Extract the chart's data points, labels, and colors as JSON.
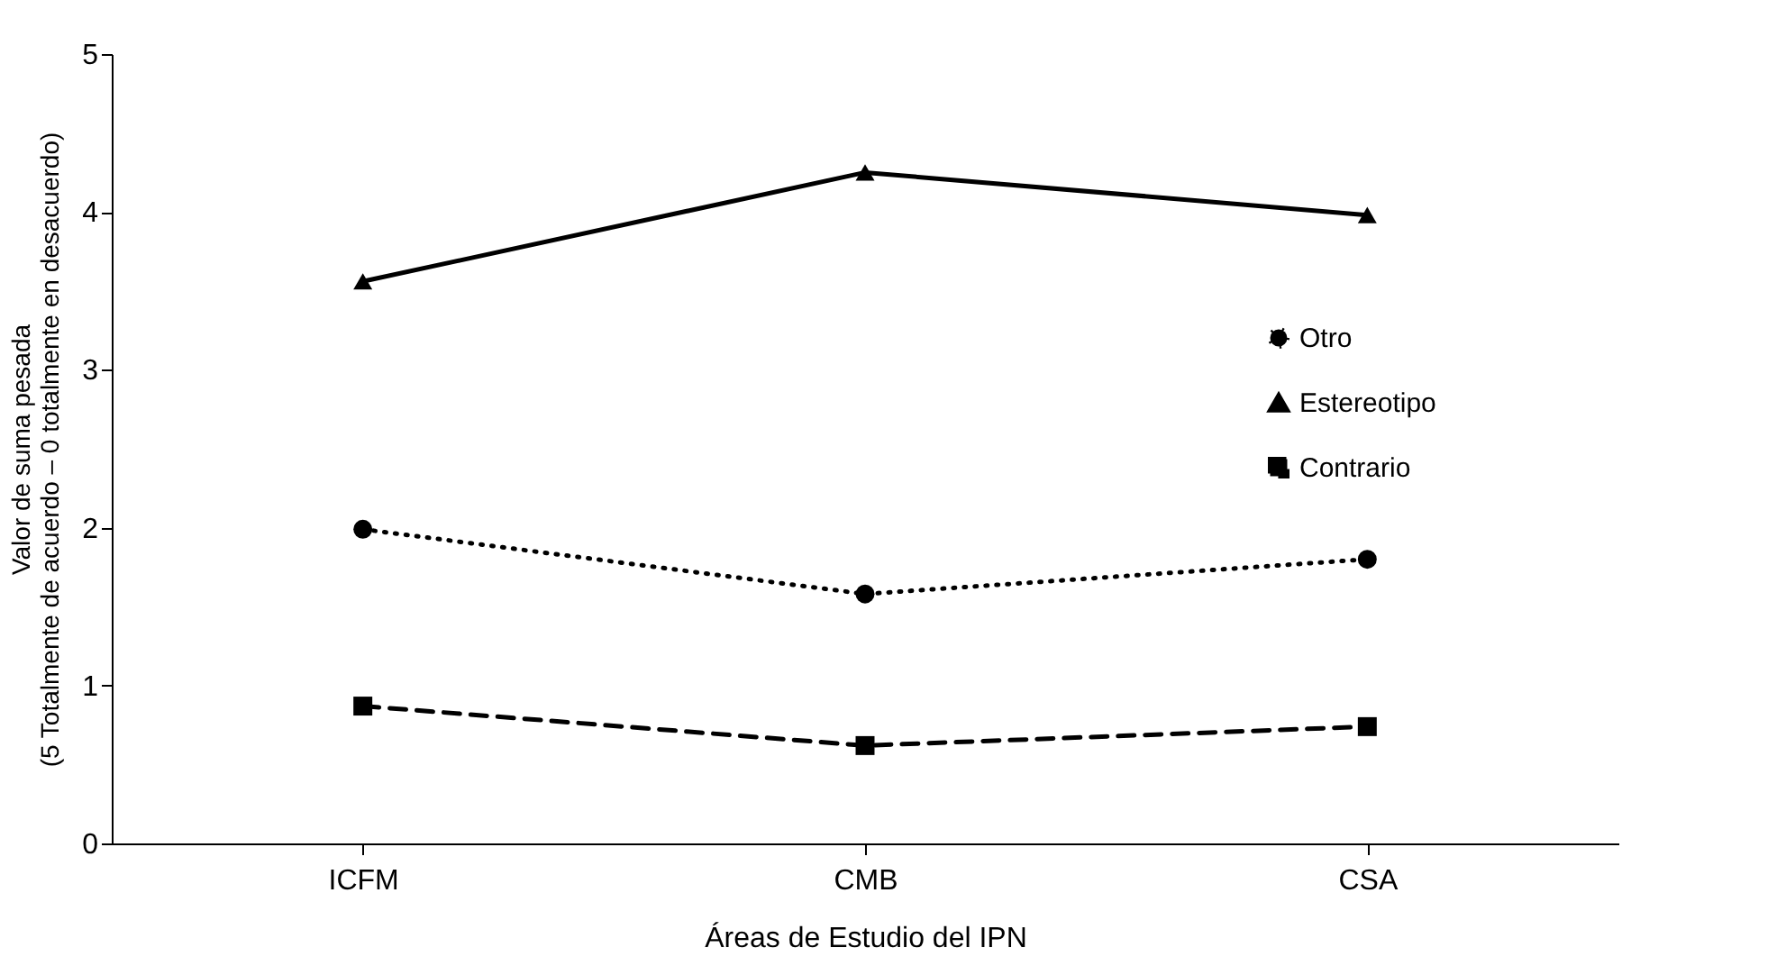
{
  "chart_data": {
    "type": "line",
    "xlabel": "Áreas de Estudio del IPN",
    "ylabel": "Valor de suma pesada\n(5 Totalmente de acuerdo – 0 totalmente en desacuerdo)",
    "categories": [
      "ICFM",
      "CMB",
      "CSA"
    ],
    "ylim": [
      0,
      5
    ],
    "yticks": [
      0,
      1,
      2,
      3,
      4,
      5
    ],
    "grid": false,
    "legend": "right",
    "series": [
      {
        "name": "Otro",
        "color": "#000000",
        "marker": "circle",
        "line_style": "dotted",
        "values": [
          1.99,
          1.58,
          1.8
        ]
      },
      {
        "name": "Estereotipo",
        "color": "#000000",
        "marker": "triangle",
        "line_style": "solid",
        "values": [
          3.56,
          4.25,
          3.98
        ]
      },
      {
        "name": "Contrario",
        "color": "#000000",
        "marker": "square",
        "line_style": "dashed",
        "values": [
          0.87,
          0.62,
          0.74
        ]
      }
    ]
  }
}
